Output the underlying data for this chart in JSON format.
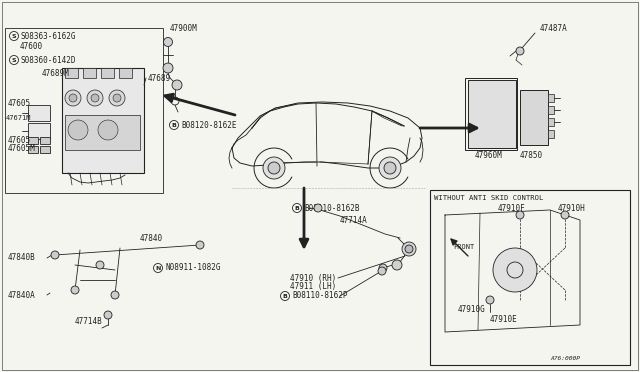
{
  "bg_color": "#f5f5f0",
  "line_color": "#222222",
  "fig_width": 6.4,
  "fig_height": 3.72,
  "dpi": 100,
  "labels": {
    "s08363": "S08363-6162G",
    "47600": "47600",
    "s08360": "S08360-6142D",
    "47689M": "47689M",
    "47689": "47689",
    "47671M": "47671M",
    "47605a": "47605",
    "47605b": "47605",
    "47605M": "47605M",
    "47900M": "47900M",
    "b08120": "B08120-8162E",
    "47840": "47840",
    "47840B": "47840B",
    "47840A": "47840A",
    "n08911": "N08911-1082G",
    "47714B": "47714B",
    "47910RH": "47910 (RH)",
    "47911LH": "47911 (LH)",
    "b08110a": "B08110-8162B",
    "b08110b": "B08110-8162P",
    "47714A": "47714A",
    "47487A": "47487A",
    "47960M": "47960M",
    "47850": "47850",
    "without_title": "WITHOUT ANTI SKID CONTROL",
    "47910F": "47910F",
    "47910H": "47910H",
    "47910G": "47910G",
    "47910E": "47910E",
    "front": "FRONT",
    "fig_num": "A76:000P"
  }
}
